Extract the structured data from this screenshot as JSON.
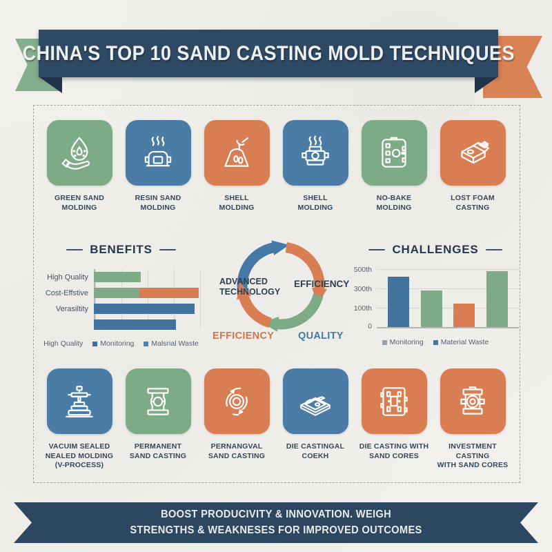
{
  "colors": {
    "navy": "#2d4963",
    "green": "#7dab85",
    "blue": "#4a7ca6",
    "orange": "#d97d52",
    "background": "#f1f0ec",
    "label_text": "#33475c"
  },
  "header": {
    "title": "CHINA'S TOP 10 SAND CASTING MOLD TECHNIQUES"
  },
  "row1": [
    {
      "label": "GREEN SAND\nMOLDING",
      "color": "#7dab85",
      "icon": "hand-droplet-icon"
    },
    {
      "label": "RESIN SAND\nMOLDING",
      "color": "#4a7ca6",
      "icon": "molding-machine-steam-icon"
    },
    {
      "label": "SHELL\nMOLDING",
      "color": "#d97d52",
      "icon": "ladle-pour-mold-icon"
    },
    {
      "label": "SHELL\nMOLDING",
      "color": "#4a7ca6",
      "icon": "flask-steam-icon"
    },
    {
      "label": "NO-BAKE\nMOLDING",
      "color": "#7dab85",
      "icon": "mold-plate-icon"
    },
    {
      "label": "LOST FOAM\nCASTING",
      "color": "#d97d52",
      "icon": "foam-block-icon"
    }
  ],
  "row2": [
    {
      "label": "VACUIM SEALED\nNEALED MOLDING\n(V-PROCESS)",
      "color": "#4a7ca6",
      "icon": "vacuum-press-icon"
    },
    {
      "label": "PERMANENT\nSAND CASTING",
      "color": "#7dab85",
      "icon": "flask-core-icon"
    },
    {
      "label": "PERNANGVAL\nSAND CASTING",
      "color": "#d97d52",
      "icon": "circular-arrows-icon"
    },
    {
      "label": "DIE CASTINGAL\nCOEKH",
      "color": "#4a7ca6",
      "icon": "die-cast-tray-icon"
    },
    {
      "label": "DIE CASTING WITH\nSAND CORES",
      "color": "#d97d52",
      "icon": "sand-core-plate-icon"
    },
    {
      "label": "INVESTMENT CASTING\nWITH SAND CORES",
      "color": "#d97d52",
      "icon": "flask-ring-icon"
    }
  ],
  "chart_data": [
    {
      "id": "benefits",
      "type": "bar",
      "orientation": "horizontal",
      "title": "BENEFITS",
      "xlim": [
        0,
        100
      ],
      "grid": true,
      "rows": [
        {
          "label": "High Quality",
          "segments": [
            {
              "pct": 43,
              "color": "#7dab85"
            }
          ]
        },
        {
          "label": "Cost-Effstive",
          "segments": [
            {
              "pct": 42,
              "color": "#7dab85"
            },
            {
              "pct": 55,
              "color": "#d97d52"
            }
          ]
        },
        {
          "label": "Verasiltity",
          "segments": [
            {
              "pct": 93,
              "color": "#41739d"
            }
          ]
        },
        {
          "label": "",
          "segments": [
            {
              "pct": 76,
              "color": "#41739d"
            }
          ]
        }
      ],
      "legend": [
        {
          "label": "High Quality",
          "swatch": null
        },
        {
          "label": "Monitoring",
          "swatch": "#3f6f99"
        },
        {
          "label": "Malsrial Waste",
          "swatch": "#4d84ad"
        }
      ]
    },
    {
      "id": "challenges",
      "type": "bar",
      "orientation": "vertical",
      "title": "CHALLENGES",
      "ymax": 550,
      "ytick_labels": [
        "500th",
        "300th",
        "100th",
        "0"
      ],
      "grid": true,
      "bars": [
        {
          "value": 480,
          "color": "#41739d"
        },
        {
          "value": 350,
          "color": "#7dab85"
        },
        {
          "value": 220,
          "color": "#d97d52"
        },
        {
          "value": 530,
          "color": "#7dab85"
        }
      ],
      "legend": [
        {
          "label": "Monitoring",
          "swatch": "#97a0a6"
        },
        {
          "label": "Material Waste",
          "swatch": "#44789f"
        }
      ]
    }
  ],
  "cycle": {
    "labels": [
      {
        "text": "ADVANCED\nTECHNOLOGY",
        "color": "#2b3f55"
      },
      {
        "text": "EFFICIENCY",
        "color": "#2b3f55"
      },
      {
        "text": "EFFICIENCY",
        "color": "#d0764a"
      },
      {
        "text": "QUALITY",
        "color": "#4579a3"
      }
    ],
    "arrow_colors": [
      "#4478a5",
      "#d97d52",
      "#7dab85",
      "#d97d52"
    ]
  },
  "footer": {
    "text": "BOOST PRODUCIVITY & INNOVATION. WEIGH\nSTRENGTHS & WEAKNESES FOR IMPROVED OUTCOMES"
  }
}
